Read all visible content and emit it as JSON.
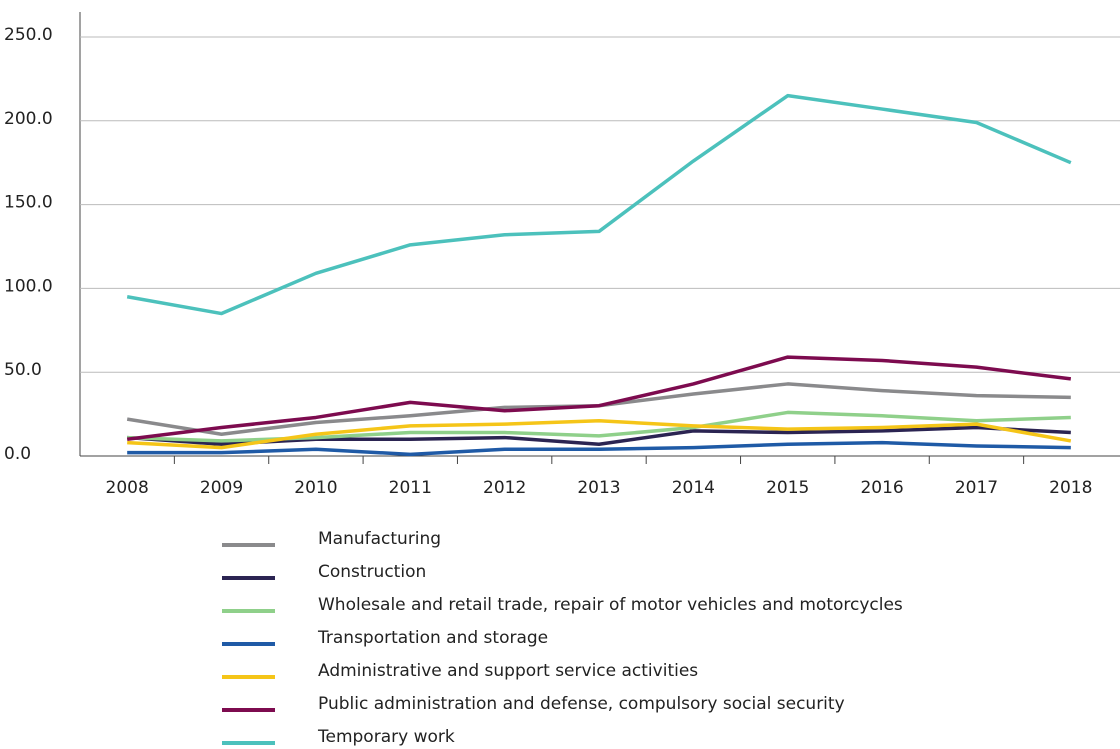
{
  "chart_data": {
    "type": "line",
    "categories": [
      "2008",
      "2009",
      "2010",
      "2011",
      "2012",
      "2013",
      "2014",
      "2015",
      "2016",
      "2017",
      "2018"
    ],
    "ylim": [
      0,
      250
    ],
    "yticks": [
      {
        "value": 0,
        "label": "0.0"
      },
      {
        "value": 50,
        "label": "50.0"
      },
      {
        "value": 100,
        "label": "100.0"
      },
      {
        "value": 150,
        "label": "150.0"
      },
      {
        "value": 200,
        "label": "200.0"
      },
      {
        "value": 250,
        "label": "250.0"
      }
    ],
    "grid": true,
    "legend": "bottom",
    "series": [
      {
        "name": "Manufacturing",
        "color": "#8a8a8c",
        "values": [
          22,
          13,
          20,
          24,
          29,
          30,
          37,
          43,
          39,
          36,
          35
        ]
      },
      {
        "name": "Construction",
        "color": "#2b2452",
        "values": [
          11,
          7,
          10,
          10,
          11,
          7,
          15,
          14,
          15,
          17,
          14
        ]
      },
      {
        "name": "Wholesale and retail trade, repair of motor vehicles and motorcycles",
        "color": "#8fd08a",
        "values": [
          11,
          9,
          11,
          14,
          14,
          12,
          17,
          26,
          24,
          21,
          23
        ]
      },
      {
        "name": "Transportation and storage",
        "color": "#1f5aa6",
        "values": [
          2,
          2,
          4,
          1,
          4,
          4,
          5,
          7,
          8,
          6,
          5
        ]
      },
      {
        "name": "Administrative and support service activities",
        "color": "#f5c518",
        "values": [
          8,
          5,
          13,
          18,
          19,
          21,
          18,
          16,
          17,
          19,
          9
        ]
      },
      {
        "name": "Public administration and defense, compulsory social security",
        "color": "#7d0b4f",
        "values": [
          10,
          17,
          23,
          32,
          27,
          30,
          43,
          59,
          57,
          53,
          46
        ]
      },
      {
        "name": "Temporary work",
        "color": "#4cc1bc",
        "values": [
          95,
          85,
          109,
          126,
          132,
          134,
          176,
          215,
          207,
          199,
          175
        ]
      }
    ]
  }
}
